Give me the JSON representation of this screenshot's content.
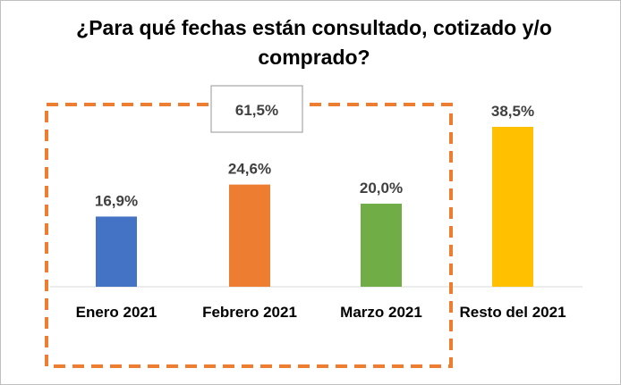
{
  "chart_data": {
    "type": "bar",
    "title": "¿Para  qué fechas están consultado, cotizado y/o comprado?",
    "categories": [
      "Enero 2021",
      "Febrero 2021",
      "Marzo 2021",
      "Resto del 2021"
    ],
    "values": [
      16.9,
      24.6,
      20.0,
      38.5
    ],
    "data_labels": [
      "16,9%",
      "24,6%",
      "20,0%",
      "38,5%"
    ],
    "colors": [
      "#4472C4",
      "#ED7D31",
      "#70AD47",
      "#FFC000"
    ],
    "ylim": [
      0,
      38.5
    ],
    "grid": false,
    "callout": {
      "label": "61,5%",
      "group": [
        "Enero 2021",
        "Febrero 2021",
        "Marzo 2021"
      ],
      "outline_color": "#ED7D31"
    }
  }
}
